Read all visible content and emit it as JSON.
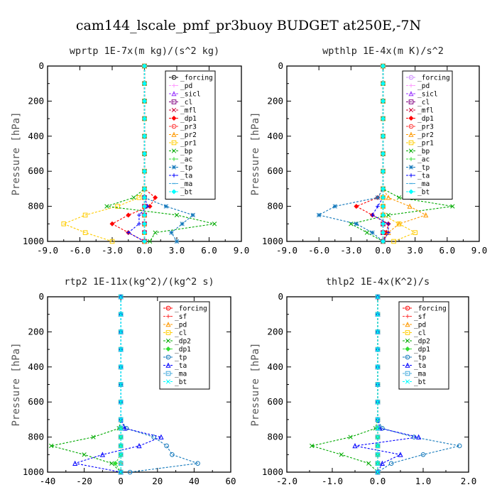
{
  "suptitle": "cam144_lscale_pmf_pr3buoy  BUDGET at250E,-7N",
  "chart_data": [
    {
      "type": "line",
      "title": "wprtp  1E-7x(m kg)/(s^2 kg)",
      "xlabel": "",
      "ylabel": "Pressure [hPa]",
      "xlim": [
        -9,
        9
      ],
      "ylim": [
        1000,
        0
      ],
      "xticks": [
        "-9.0",
        "-6.0",
        "-3.0",
        "0.0",
        "3.0",
        "6.0",
        "9.0"
      ],
      "yticks": [
        "0",
        "200",
        "400",
        "600",
        "800",
        "1000"
      ],
      "y": [
        0,
        100,
        200,
        300,
        400,
        500,
        600,
        700,
        750,
        800,
        850,
        900,
        950,
        1000
      ],
      "series": [
        {
          "name": "_forcing",
          "color": "#000000",
          "x": [
            0,
            0,
            0,
            0,
            0,
            0,
            0,
            0,
            0,
            0,
            0,
            0,
            0,
            0
          ]
        },
        {
          "name": "_pd",
          "color": "#ff99ff",
          "x": [
            0,
            0,
            0,
            0,
            0,
            0,
            0,
            0,
            0,
            0,
            0,
            0,
            0,
            0
          ]
        },
        {
          "name": "_sicl",
          "color": "#9933ff",
          "x": [
            0,
            0,
            0,
            0,
            0,
            0,
            0,
            0,
            0,
            0,
            0,
            0,
            0,
            0
          ]
        },
        {
          "name": "_cl",
          "color": "#800080",
          "x": [
            0,
            0,
            0,
            0,
            0,
            0,
            0,
            0,
            0,
            0,
            0,
            0,
            0,
            0
          ]
        },
        {
          "name": "_mfl",
          "color": "#cc0033",
          "x": [
            0,
            0,
            0,
            0,
            0,
            0,
            0,
            0,
            0,
            0,
            0,
            0,
            0,
            0
          ]
        },
        {
          "name": "_dp1",
          "color": "#ff0000",
          "x": [
            0,
            0,
            0,
            0,
            0,
            0,
            0,
            0,
            1.0,
            0.5,
            -1.5,
            -3.0,
            -1.5,
            0
          ]
        },
        {
          "name": "_pr3",
          "color": "#ff3333",
          "x": [
            0,
            0,
            0,
            0,
            0,
            0,
            0,
            0,
            0,
            0,
            0,
            0,
            0,
            0
          ]
        },
        {
          "name": "_pr2",
          "color": "#ff9900",
          "x": [
            0,
            0,
            0,
            0,
            0,
            0,
            0,
            0,
            0,
            0,
            0,
            0,
            0,
            0
          ]
        },
        {
          "name": "_pr1",
          "color": "#ffcc00",
          "x": [
            0,
            0,
            0,
            0,
            0,
            0,
            0,
            0,
            -0.5,
            -2.5,
            -5.5,
            -7.5,
            -5.5,
            -3.0
          ]
        },
        {
          "name": "_bp",
          "color": "#00aa00",
          "x": [
            0,
            0,
            0,
            0,
            0,
            0,
            0,
            0,
            -1.0,
            -3.5,
            3.0,
            6.5,
            1.0,
            0.5
          ]
        },
        {
          "name": "_ac",
          "color": "#33dd33",
          "x": [
            0,
            0,
            0,
            0,
            0,
            0,
            0,
            0,
            0,
            0,
            0,
            0,
            0,
            0
          ]
        },
        {
          "name": "_tp",
          "color": "#1177bb",
          "x": [
            0,
            0,
            0,
            0,
            0,
            0,
            0,
            0,
            0,
            2.0,
            4.5,
            3.5,
            2.5,
            3.0
          ]
        },
        {
          "name": "_ta",
          "color": "#0000ff",
          "x": [
            0,
            0,
            0,
            0,
            0,
            0,
            0,
            0,
            0,
            0.3,
            -0.5,
            -0.5,
            -1.5,
            0
          ]
        },
        {
          "name": "_ma",
          "color": "#44aadd",
          "x": [
            0,
            0,
            0,
            0,
            0,
            0,
            0,
            0,
            0,
            0,
            0,
            0,
            0,
            0
          ]
        },
        {
          "name": "_bt",
          "color": "#00ffff",
          "x": [
            0,
            0,
            0,
            0,
            0,
            0,
            0,
            0,
            0,
            0,
            0,
            0,
            0,
            0
          ]
        }
      ]
    },
    {
      "type": "line",
      "title": "wpthlp  1E-4x(m K)/s^2",
      "xlabel": "",
      "ylabel": "Pressure [hPa]",
      "xlim": [
        -9,
        9
      ],
      "ylim": [
        1000,
        0
      ],
      "xticks": [
        "-9.0",
        "-6.0",
        "-3.0",
        "0.0",
        "3.0",
        "6.0",
        "9.0"
      ],
      "yticks": [
        "0",
        "200",
        "400",
        "600",
        "800",
        "1000"
      ],
      "y": [
        0,
        100,
        200,
        300,
        400,
        500,
        600,
        700,
        750,
        800,
        850,
        900,
        950,
        1000
      ],
      "series": [
        {
          "name": "_forcing",
          "color": "#cc88ff",
          "x": [
            0,
            0,
            0,
            0,
            0,
            0,
            0,
            0,
            0,
            0,
            0,
            0,
            0,
            0
          ]
        },
        {
          "name": "_pd",
          "color": "#ff99ff",
          "x": [
            0,
            0,
            0,
            0,
            0,
            0,
            0,
            0,
            0,
            0,
            0,
            0,
            0,
            0
          ]
        },
        {
          "name": "_sicl",
          "color": "#9933ff",
          "x": [
            0,
            0,
            0,
            0,
            0,
            0,
            0,
            0,
            0,
            0,
            0,
            0,
            0,
            0
          ]
        },
        {
          "name": "_cl",
          "color": "#800080",
          "x": [
            0,
            0,
            0,
            0,
            0,
            0,
            0,
            0,
            0,
            0,
            0,
            0,
            0,
            0
          ]
        },
        {
          "name": "_mfl",
          "color": "#cc0033",
          "x": [
            0,
            0,
            0,
            0,
            0,
            0,
            0,
            0,
            0,
            0,
            0,
            0,
            0,
            0
          ]
        },
        {
          "name": "_dp1",
          "color": "#ff0000",
          "x": [
            0,
            0,
            0,
            0,
            0,
            0,
            0,
            0,
            -0.5,
            -2.5,
            -1.0,
            0.5,
            0.3,
            0
          ]
        },
        {
          "name": "_pr3",
          "color": "#ff3333",
          "x": [
            0,
            0,
            0,
            0,
            0,
            0,
            0,
            0,
            0,
            0,
            0,
            0,
            0,
            0
          ]
        },
        {
          "name": "_pr2",
          "color": "#ff9900",
          "x": [
            0,
            0,
            0,
            0,
            0,
            0,
            0,
            0,
            0.5,
            2.5,
            4.0,
            1.5,
            0.5,
            0
          ]
        },
        {
          "name": "_pr1",
          "color": "#ffcc00",
          "x": [
            0,
            0,
            0,
            0,
            0,
            0,
            0,
            0,
            0,
            0,
            0,
            1.5,
            3.0,
            1.0
          ]
        },
        {
          "name": "_bp",
          "color": "#00aa00",
          "x": [
            0,
            0,
            0,
            0,
            0,
            0,
            0,
            0,
            1.5,
            6.5,
            0.5,
            -3.0,
            -1.5,
            0
          ]
        },
        {
          "name": "_ac",
          "color": "#33dd33",
          "x": [
            0,
            0,
            0,
            0,
            0,
            0,
            0,
            0,
            0,
            0,
            0,
            0,
            0,
            0
          ]
        },
        {
          "name": "_tp",
          "color": "#1177bb",
          "x": [
            0,
            0,
            0,
            0,
            0,
            0,
            0,
            0,
            -0.5,
            -4.5,
            -6.0,
            -2.5,
            -1.0,
            0
          ]
        },
        {
          "name": "_ta",
          "color": "#0000ff",
          "x": [
            0,
            0,
            0,
            0,
            0,
            0,
            0,
            0,
            0,
            -0.5,
            -1.0,
            0.5,
            0.5,
            0
          ]
        },
        {
          "name": "_ma",
          "color": "#44aadd",
          "x": [
            0,
            0,
            0,
            0,
            0,
            0,
            0,
            0,
            0,
            0,
            0,
            0,
            0,
            0
          ]
        },
        {
          "name": "_bt",
          "color": "#00ffff",
          "x": [
            0,
            0,
            0,
            0,
            0,
            0,
            0,
            0,
            0,
            0,
            0,
            0,
            0,
            0
          ]
        }
      ]
    },
    {
      "type": "line",
      "title": "rtp2  1E-11x(kg^2)/(kg^2 s)",
      "xlabel": "",
      "ylabel": "Pressure [hPa]",
      "xlim": [
        -40,
        60
      ],
      "ylim": [
        1000,
        0
      ],
      "xticks": [
        "-40",
        "-20",
        "0",
        "20",
        "40",
        "60"
      ],
      "yticks": [
        "0",
        "200",
        "400",
        "600",
        "800",
        "1000"
      ],
      "y": [
        0,
        100,
        200,
        300,
        400,
        500,
        600,
        700,
        750,
        800,
        850,
        900,
        950,
        1000
      ],
      "series": [
        {
          "name": "_forcing",
          "color": "#ff0000",
          "x": [
            0,
            0,
            0,
            0,
            0,
            0,
            0,
            0,
            0,
            0,
            0,
            0,
            0,
            0
          ]
        },
        {
          "name": "_sf",
          "color": "#ff3333",
          "x": [
            0,
            0,
            0,
            0,
            0,
            0,
            0,
            0,
            0,
            0,
            0,
            0,
            0,
            0
          ]
        },
        {
          "name": "_pd",
          "color": "#ff9900",
          "x": [
            0,
            0,
            0,
            0,
            0,
            0,
            0,
            0,
            0,
            0,
            0,
            0,
            0,
            0
          ]
        },
        {
          "name": "_cl",
          "color": "#ffcc00",
          "x": [
            0,
            0,
            0,
            0,
            0,
            0,
            0,
            0,
            0,
            0,
            0,
            0,
            0,
            0
          ]
        },
        {
          "name": "_dp2",
          "color": "#00aa00",
          "x": [
            0,
            0,
            0,
            0,
            0,
            0,
            0,
            0,
            -1.0,
            -15.0,
            -38.0,
            -20.0,
            -5.0,
            0
          ]
        },
        {
          "name": "_dp1",
          "color": "#33dd33",
          "x": [
            0,
            0,
            0,
            0,
            0,
            0,
            0,
            0,
            0,
            0,
            0,
            0,
            -3.0,
            0
          ]
        },
        {
          "name": "_tp",
          "color": "#1177bb",
          "x": [
            0,
            0,
            0,
            0,
            0,
            0,
            0,
            0,
            3.0,
            18.0,
            25.0,
            28.0,
            42.0,
            5.0
          ]
        },
        {
          "name": "_ta",
          "color": "#0000ff",
          "x": [
            0,
            0,
            0,
            0,
            0,
            0,
            0,
            0,
            2.0,
            22.0,
            10.0,
            -10.0,
            -25.0,
            0
          ]
        },
        {
          "name": "_ma",
          "color": "#44aadd",
          "x": [
            0,
            0,
            0,
            0,
            0,
            0,
            0,
            0,
            0,
            0,
            0,
            0,
            0,
            0
          ]
        },
        {
          "name": "_bt",
          "color": "#00ffff",
          "x": [
            0,
            0,
            0,
            0,
            0,
            0,
            0,
            0,
            0,
            0,
            0,
            0,
            0,
            0
          ]
        }
      ]
    },
    {
      "type": "line",
      "title": "thlp2  1E-4x(K^2)/s",
      "xlabel": "",
      "ylabel": "Pressure [hPa]",
      "xlim": [
        -2.0,
        2.0
      ],
      "ylim": [
        1000,
        0
      ],
      "xticks": [
        "-2.0",
        "-1.0",
        "0.0",
        "1.0",
        "2.0"
      ],
      "yticks": [
        "0",
        "200",
        "400",
        "600",
        "800",
        "1000"
      ],
      "y": [
        0,
        100,
        200,
        300,
        400,
        500,
        600,
        700,
        750,
        800,
        850,
        900,
        950,
        1000
      ],
      "series": [
        {
          "name": "_forcing",
          "color": "#ff0000",
          "x": [
            0,
            0,
            0,
            0,
            0,
            0,
            0,
            0,
            0,
            0,
            0,
            0,
            0,
            0
          ]
        },
        {
          "name": "_sf",
          "color": "#ff3333",
          "x": [
            0,
            0,
            0,
            0,
            0,
            0,
            0,
            0,
            0,
            0,
            0,
            0,
            0,
            0
          ]
        },
        {
          "name": "_pd",
          "color": "#ff9900",
          "x": [
            0,
            0,
            0,
            0,
            0,
            0,
            0,
            0,
            0,
            0,
            0,
            0,
            0,
            0
          ]
        },
        {
          "name": "_cl",
          "color": "#ffcc00",
          "x": [
            0,
            0,
            0,
            0,
            0,
            0,
            0,
            0,
            0,
            0,
            0,
            0,
            0,
            0
          ]
        },
        {
          "name": "_dp2",
          "color": "#00aa00",
          "x": [
            0,
            0,
            0,
            0,
            0,
            0,
            0,
            0,
            -0.05,
            -0.6,
            -1.45,
            -0.8,
            -0.2,
            0
          ]
        },
        {
          "name": "_dp1",
          "color": "#33dd33",
          "x": [
            0,
            0,
            0,
            0,
            0,
            0,
            0,
            0,
            0,
            0,
            0,
            0,
            0,
            0
          ]
        },
        {
          "name": "_tp",
          "color": "#1177bb",
          "x": [
            0,
            0,
            0,
            0,
            0,
            0,
            0,
            0,
            0.1,
            0.8,
            1.8,
            1.0,
            0.3,
            0
          ]
        },
        {
          "name": "_ta",
          "color": "#0000ff",
          "x": [
            0,
            0,
            0,
            0,
            0,
            0,
            0,
            0,
            0.05,
            0.9,
            -0.5,
            0.5,
            0.1,
            0
          ]
        },
        {
          "name": "_ma",
          "color": "#44aadd",
          "x": [
            0,
            0,
            0,
            0,
            0,
            0,
            0,
            0,
            0,
            0,
            0,
            0,
            0,
            0
          ]
        },
        {
          "name": "_bt",
          "color": "#00ffff",
          "x": [
            0,
            0,
            0,
            0,
            0,
            0,
            0,
            0,
            0,
            0,
            0,
            0,
            0,
            0
          ]
        }
      ]
    }
  ]
}
